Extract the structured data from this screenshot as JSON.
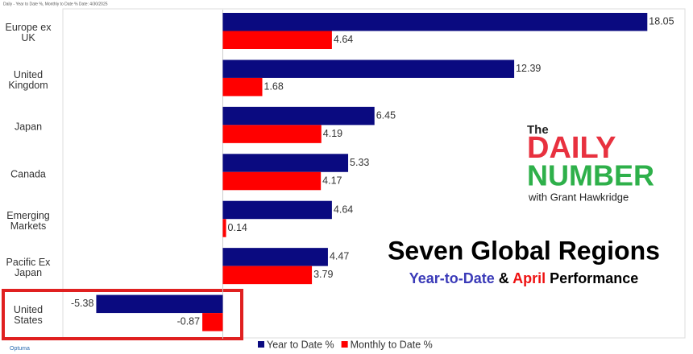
{
  "chart_data": {
    "type": "bar",
    "orientation": "horizontal",
    "header": "Daily - Year to Date %, Monthly to Date %   Date: 4/30/2025",
    "title": "Seven Global Regions",
    "subtitle_parts": [
      "Year-to-Date",
      "&",
      "April",
      "Performance"
    ],
    "logo": {
      "the": "The",
      "daily": "DAILY",
      "number": "NUMBER",
      "byline": "with Grant Hawkridge"
    },
    "source": "Optuma",
    "categories": [
      "Europe ex UK",
      "United Kingdom",
      "Japan",
      "Canada",
      "Emerging Markets",
      "Pacific Ex Japan",
      "United States"
    ],
    "series": [
      {
        "name": "Year to Date %",
        "color": "#0a0a80",
        "values": [
          18.05,
          12.39,
          6.45,
          5.33,
          4.64,
          4.47,
          -5.38
        ]
      },
      {
        "name": "Monthly to Date %",
        "color": "#ff0000",
        "values": [
          4.64,
          1.68,
          4.19,
          4.17,
          0.14,
          3.79,
          -0.87
        ]
      }
    ],
    "xlim": [
      -6.8,
      19.65
    ]
  }
}
